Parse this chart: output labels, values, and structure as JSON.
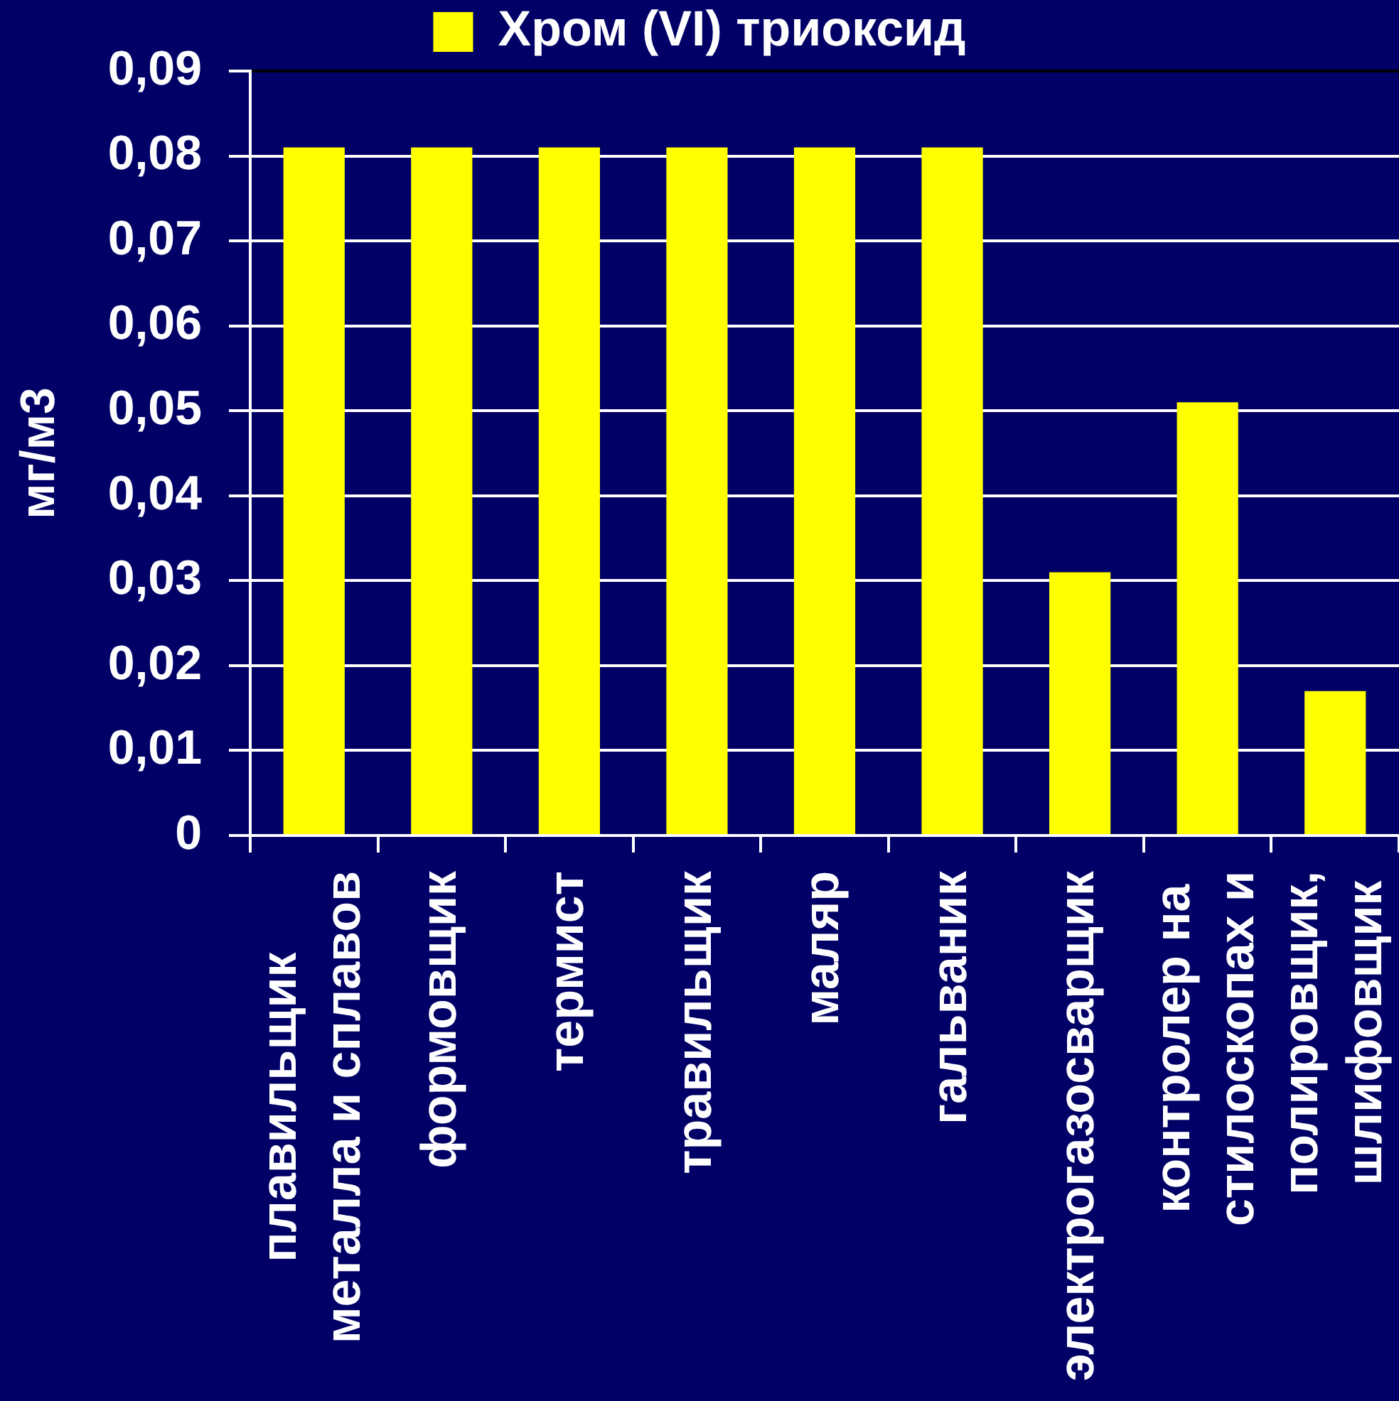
{
  "chart_data": {
    "type": "bar",
    "categories": [
      "плавильщик металла и сплавов",
      "формовщик",
      "термист",
      "травильщик",
      "маляр",
      "гальваник",
      "электрогазосварщик",
      "контролер на стилоскопах и",
      "полировщик, шлифовщик"
    ],
    "series": [
      {
        "name": "Хром (VI) триоксид",
        "color": "#ffff00",
        "values": [
          0.081,
          0.081,
          0.081,
          0.081,
          0.081,
          0.081,
          0.031,
          0.051,
          0.017
        ]
      }
    ],
    "ylabel": "мг/м3",
    "ylim": [
      0,
      0.09
    ],
    "yticks": [
      0,
      {
        "value": 0.01,
        "label": "0,01"
      },
      {
        "value": 0.02,
        "label": "0,02"
      },
      {
        "value": 0.03,
        "label": "0,03"
      },
      {
        "value": 0.04,
        "label": "0,04"
      },
      {
        "value": 0.05,
        "label": "0,05"
      },
      {
        "value": 0.06,
        "label": "0,06"
      },
      {
        "value": 0.07,
        "label": "0,07"
      },
      {
        "value": 0.08,
        "label": "0,08"
      },
      {
        "value": 0.09,
        "label": "0,09"
      }
    ],
    "grid": "y",
    "legend": "top"
  }
}
